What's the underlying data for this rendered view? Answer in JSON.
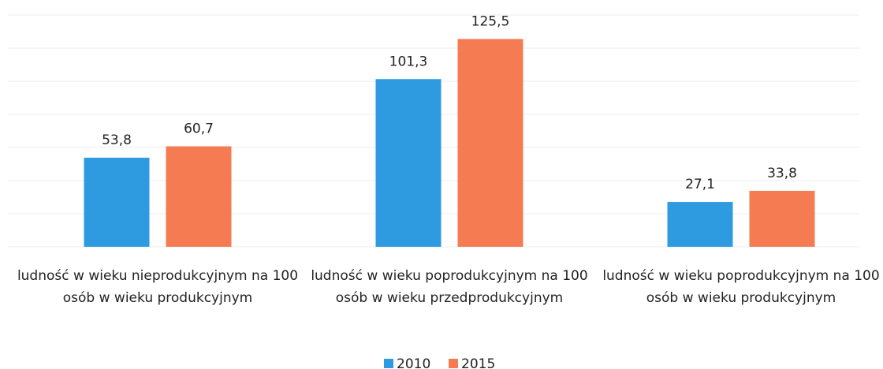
{
  "chart_data": {
    "type": "bar",
    "categories": [
      "ludność w wieku nieprodukcyjnym na 100 osób w wieku produkcyjnym",
      "ludność w wieku poprodukcyjnym na 100 osób w wieku przedprodukcyjnym",
      "ludność w wieku poprodukcyjnym na 100 osób w wieku produkcyjnym"
    ],
    "series": [
      {
        "name": "2010",
        "color": "#2e9be0",
        "values": [
          53.8,
          101.3,
          27.1
        ],
        "value_labels": [
          "53,8",
          "101,3",
          "27,1"
        ]
      },
      {
        "name": "2015",
        "color": "#f57c52",
        "values": [
          60.7,
          125.5,
          33.8
        ],
        "value_labels": [
          "60,7",
          "125,5",
          "33,8"
        ]
      }
    ],
    "ylim": [
      0,
      140
    ],
    "yticks": [
      0,
      20,
      40,
      60,
      80,
      100,
      120,
      140
    ],
    "grid": true,
    "legend": "bottom"
  }
}
